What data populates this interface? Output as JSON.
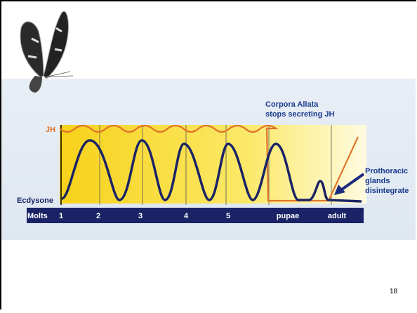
{
  "diagram": {
    "annotation": [
      "Corpora Allata",
      "stops secreting JH"
    ],
    "hormones": {
      "jh": "JH",
      "ecdysone": "Ecdysone"
    },
    "molts": {
      "label": "Molts",
      "stages": [
        "1",
        "2",
        "3",
        "4",
        "5",
        "pupae",
        "adult"
      ]
    },
    "callout": [
      "Prothoracic",
      "glands",
      "disintegrate"
    ]
  },
  "page_number": "18"
}
